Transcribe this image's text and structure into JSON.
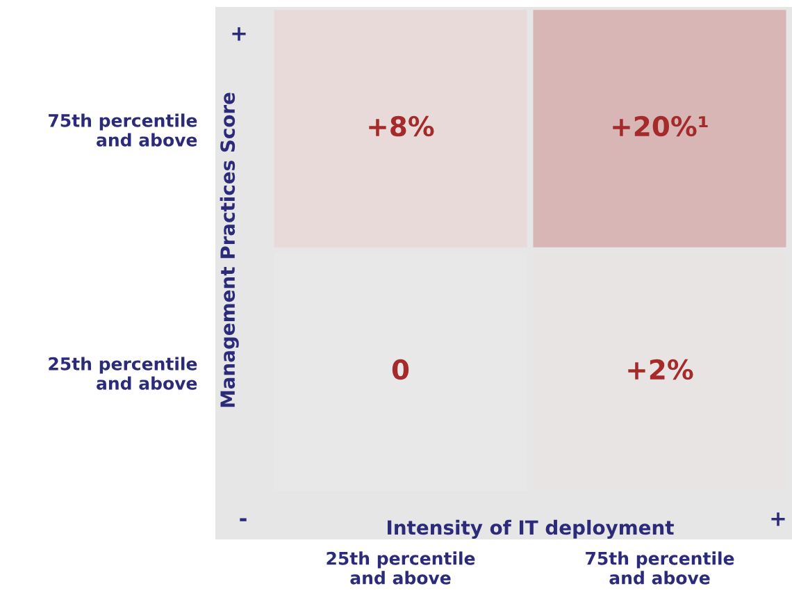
{
  "chart_data": {
    "type": "heatmap",
    "xlabel": "Intensity of IT deployment",
    "ylabel": "Management Practices Score",
    "categories": [
      "25th percentile\nand above",
      "75th percentile\nand above"
    ],
    "y_categories": [
      "75th percentile\nand above",
      "25th percentile\nand above"
    ],
    "cells": [
      [
        8,
        20
      ],
      [
        0,
        2
      ]
    ],
    "cell_labels": [
      [
        "+8%",
        "+20%¹"
      ],
      [
        "0",
        "+2%"
      ]
    ],
    "annotations": [
      "+",
      "-",
      "+"
    ]
  }
}
